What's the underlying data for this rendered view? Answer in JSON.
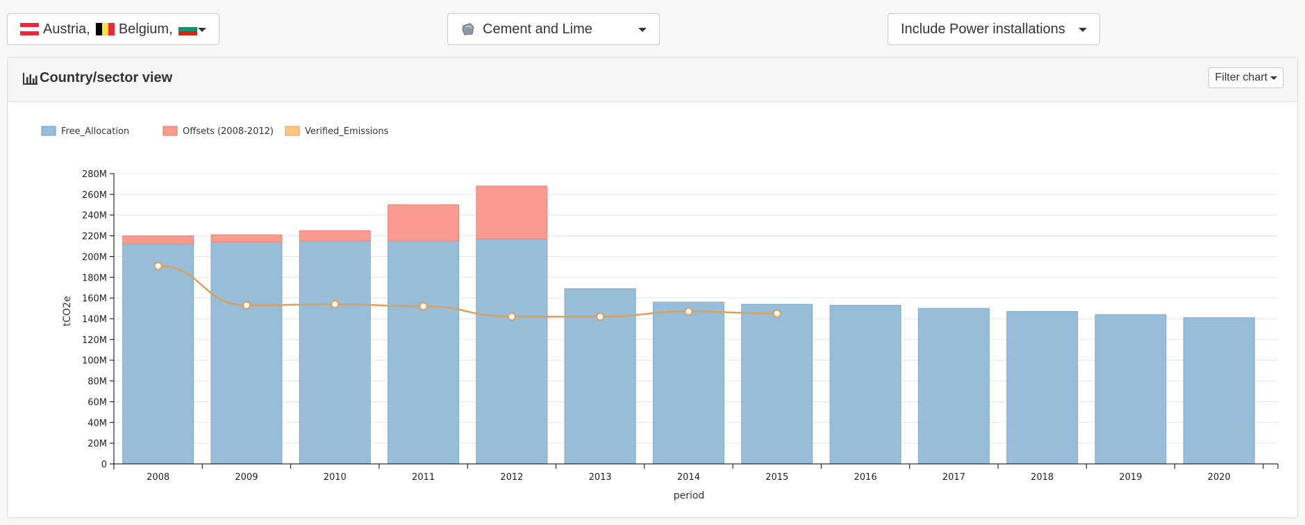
{
  "filters": {
    "countries_text": [
      "Austria,",
      "Belgium,"
    ],
    "sector": "Cement and Lime",
    "installations": "Include Power installations"
  },
  "panel": {
    "title": "Country/sector view",
    "filter_button": "Filter chart"
  },
  "colors": {
    "free_allocation": "#97bdd9",
    "offsets": "#f99a8f",
    "verified": "#f9c781",
    "line": "#d9a05b"
  },
  "chart_data": {
    "type": "bar",
    "stacked": true,
    "categories": [
      "2008",
      "2009",
      "2010",
      "2011",
      "2012",
      "2013",
      "2014",
      "2015",
      "2016",
      "2017",
      "2018",
      "2019",
      "2020"
    ],
    "series": [
      {
        "name": "Free_Allocation",
        "type": "bar",
        "values": [
          212,
          214,
          215,
          215,
          217,
          169,
          156,
          154,
          153,
          150,
          147,
          144,
          141
        ]
      },
      {
        "name": "Offsets (2008-2012)",
        "type": "bar",
        "values": [
          8,
          7,
          10,
          35,
          51,
          0,
          0,
          0,
          0,
          0,
          0,
          0,
          0
        ]
      },
      {
        "name": "Verified_Emissions",
        "type": "line",
        "values": [
          191,
          153,
          154,
          152,
          142,
          142,
          147,
          145,
          null,
          null,
          null,
          null,
          null
        ]
      }
    ],
    "xlabel": "period",
    "ylabel": "tCO2e",
    "ylim": [
      0,
      280
    ],
    "yticks": [
      "0",
      "20M",
      "40M",
      "60M",
      "80M",
      "100M",
      "120M",
      "140M",
      "160M",
      "180M",
      "200M",
      "220M",
      "240M",
      "260M",
      "280M"
    ],
    "grid": true,
    "legend": "top-left"
  }
}
